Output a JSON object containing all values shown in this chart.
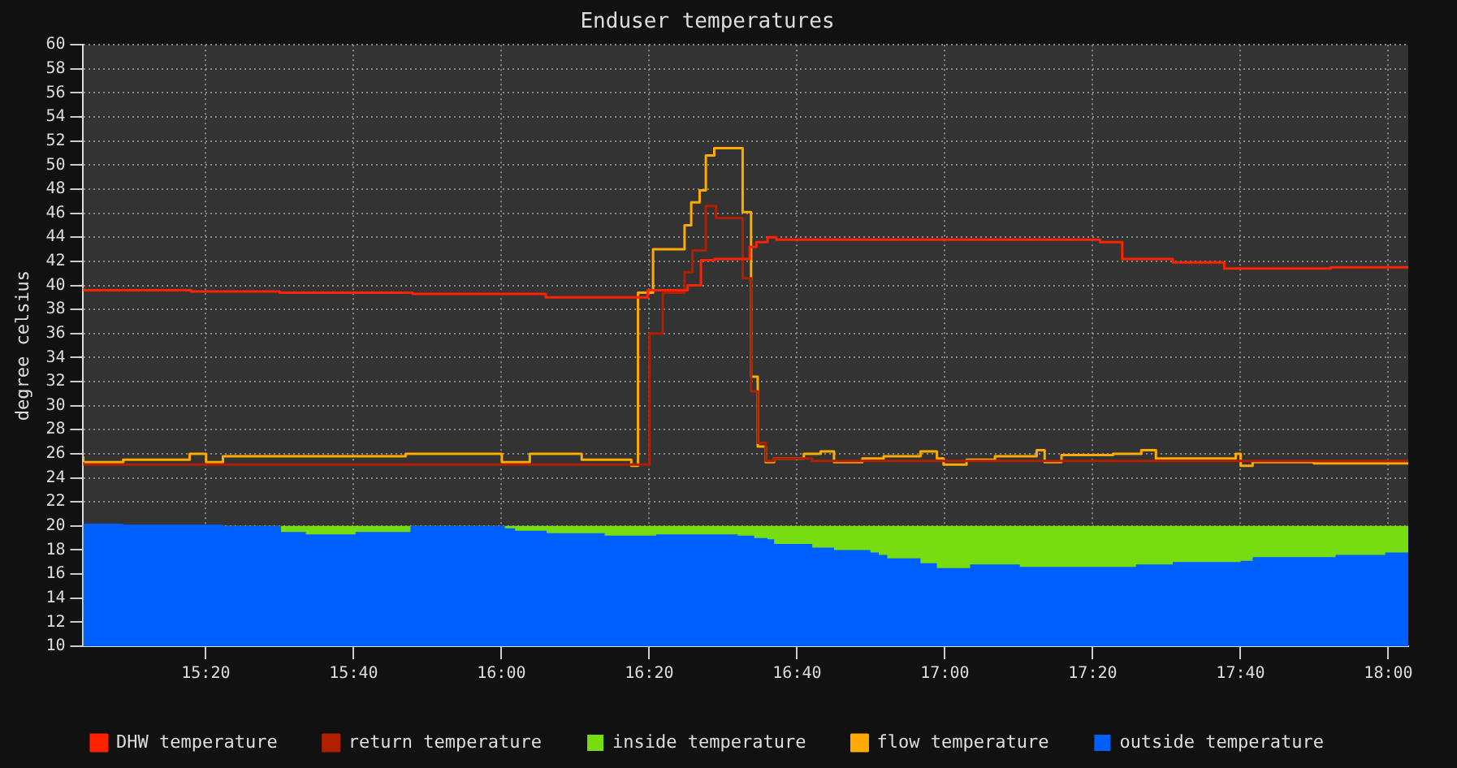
{
  "chart_data": {
    "type": "step",
    "title": "Enduser temperatures",
    "ylabel": "degree celsius",
    "xlim": [
      15.057,
      18.045
    ],
    "xticks": [
      {
        "value": 15.3333,
        "label": "15:20"
      },
      {
        "value": 15.6667,
        "label": "15:40"
      },
      {
        "value": 16,
        "label": "16:00"
      },
      {
        "value": 16.3333,
        "label": "16:20"
      },
      {
        "value": 16.6667,
        "label": "16:40"
      },
      {
        "value": 17,
        "label": "17:00"
      },
      {
        "value": 17.3333,
        "label": "17:20"
      },
      {
        "value": 17.6667,
        "label": "17:40"
      },
      {
        "value": 18,
        "label": "18:00"
      }
    ],
    "ylim": [
      10,
      60
    ],
    "yticks": [
      10,
      12,
      14,
      16,
      18,
      20,
      22,
      24,
      26,
      28,
      30,
      32,
      34,
      36,
      38,
      40,
      42,
      44,
      46,
      48,
      50,
      52,
      54,
      56,
      58,
      60
    ],
    "grid": true,
    "legend": "bottom",
    "series": [
      {
        "name": "DHW temperature",
        "color": "#ff2200",
        "x": [
          15.057,
          15.3,
          15.5,
          15.8,
          16.1,
          16.33,
          16.42,
          16.45,
          16.48,
          16.56,
          16.575,
          16.6,
          16.62,
          17.35,
          17.4,
          17.514,
          17.63,
          17.87,
          18.045
        ],
        "values": [
          39.8,
          39.6,
          39.5,
          39.4,
          39.3,
          39.0,
          39.6,
          40.0,
          42.1,
          42.2,
          43.2,
          43.6,
          44.0,
          43.8,
          43.6,
          42.2,
          41.9,
          41.4,
          41.5
        ]
      },
      {
        "name": "return temperature",
        "color": "#b02000",
        "x": [
          15.057,
          16.334,
          16.364,
          16.413,
          16.431,
          16.461,
          16.484,
          16.544,
          16.563,
          16.578,
          16.596,
          16.615,
          16.7,
          17.6,
          18.045
        ],
        "values": [
          25.3,
          25.1,
          36.0,
          39.4,
          41.1,
          42.9,
          46.6,
          45.6,
          40.6,
          31.2,
          26.9,
          25.4,
          25.6,
          25.4,
          25.4
        ]
      },
      {
        "name": "inside temperature",
        "color": "#77dd11",
        "type": "area",
        "x": [
          15.057,
          18.045
        ],
        "values": [
          20.0,
          20.0
        ]
      },
      {
        "name": "flow temperature",
        "color": "#ffaa00",
        "x": [
          15.057,
          15.147,
          15.297,
          15.334,
          15.372,
          15.784,
          16.001,
          16.064,
          16.181,
          16.293,
          16.308,
          16.342,
          16.413,
          16.428,
          16.447,
          16.461,
          16.48,
          16.544,
          16.563,
          16.578,
          16.596,
          16.615,
          16.682,
          16.72,
          16.75,
          16.814,
          16.862,
          16.945,
          16.982,
          16.997,
          17.049,
          17.113,
          17.207,
          17.225,
          17.263,
          17.379,
          17.443,
          17.476,
          17.514,
          17.656,
          17.667,
          17.694,
          17.832,
          17.873,
          18.045
        ],
        "values": [
          25.8,
          25.3,
          25.5,
          26.0,
          25.3,
          25.8,
          26.0,
          25.3,
          26.0,
          25.5,
          25.0,
          39.4,
          43.0,
          45.0,
          46.9,
          47.9,
          50.8,
          51.4,
          46.1,
          32.4,
          26.6,
          25.3,
          25.6,
          26.0,
          26.2,
          25.3,
          25.6,
          25.8,
          26.2,
          25.6,
          25.1,
          25.5,
          25.8,
          26.3,
          25.3,
          25.9,
          26.0,
          26.3,
          25.6,
          25.6,
          26.0,
          25.0,
          25.3,
          25.2,
          25.2
        ]
      },
      {
        "name": "outside temperature",
        "color": "#0060ff",
        "type": "area",
        "x": [
          15.057,
          15.147,
          15.372,
          15.503,
          15.559,
          15.671,
          15.795,
          15.933,
          16.008,
          16.031,
          16.102,
          16.233,
          16.349,
          16.533,
          16.57,
          16.6,
          16.615,
          16.701,
          16.75,
          16.832,
          16.851,
          16.87,
          16.945,
          16.982,
          17.057,
          17.169,
          17.431,
          17.514,
          17.667,
          17.694,
          17.881,
          17.993,
          18.03,
          18.045
        ],
        "values": [
          20.3,
          20.2,
          20.1,
          20.0,
          19.5,
          19.3,
          19.5,
          20.0,
          20.0,
          19.8,
          19.6,
          19.4,
          19.2,
          19.3,
          19.2,
          19.0,
          18.9,
          18.5,
          18.2,
          18.0,
          17.8,
          17.6,
          17.3,
          16.9,
          16.5,
          16.8,
          16.6,
          16.8,
          17.0,
          17.1,
          17.4,
          17.6,
          17.8,
          17.8
        ]
      }
    ]
  }
}
